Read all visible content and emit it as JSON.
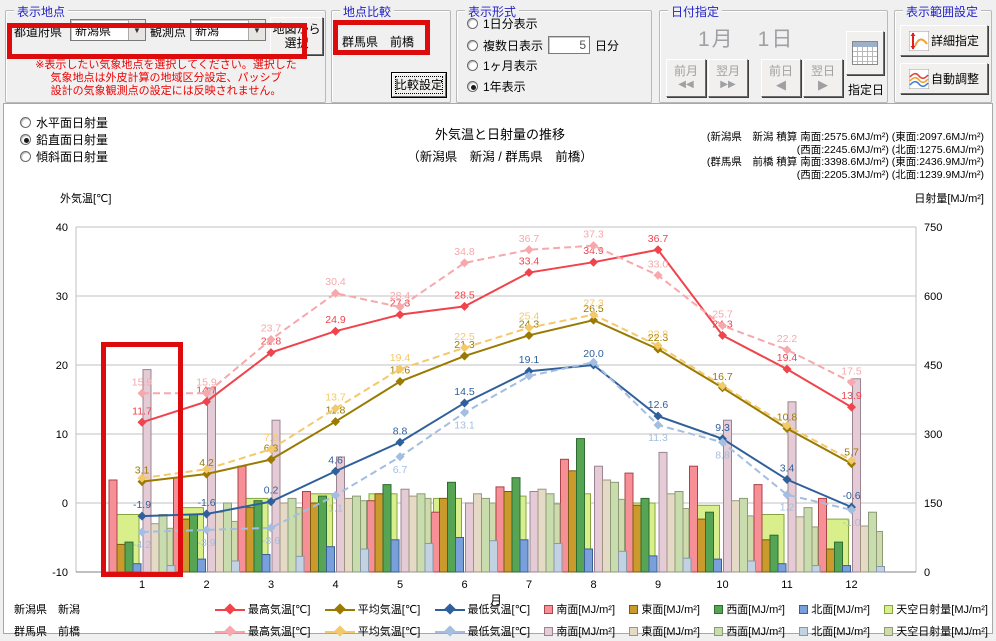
{
  "display_location": {
    "title": "表示地点",
    "prefecture_label": "都道府県",
    "prefecture_value": "新潟県",
    "station_label": "観測点",
    "station_value": "新潟",
    "map_button_line1": "地図から",
    "map_button_line2": "選択",
    "warning_lines": [
      "※表示したい気象地点を選択してください。選択した",
      "気象地点は外皮計算の地域区分設定、パッシブ",
      "設計の気象観測点の設定には反映されません。"
    ]
  },
  "location_compare": {
    "title": "地点比較",
    "value": "群馬県　前橋",
    "settings_button": "比較設定"
  },
  "display_format": {
    "title": "表示形式",
    "options": [
      {
        "label": "1日分表示",
        "selected": false
      },
      {
        "label": "複数日表示",
        "selected": false,
        "count_value": "5",
        "count_suffix": "日分"
      },
      {
        "label": "1ヶ月表示",
        "selected": false
      },
      {
        "label": "1年表示",
        "selected": true
      }
    ]
  },
  "date_select": {
    "title": "日付指定",
    "current_date": "1月　1日",
    "prev_month": "前月",
    "next_month": "翌月",
    "prev_day": "前日",
    "next_day": "翌日",
    "prev_month_glyph": "◀◀",
    "next_month_glyph": "▶▶",
    "prev_day_glyph": "◀",
    "next_day_glyph": "▶",
    "designated_day": "指定日"
  },
  "range_settings": {
    "title": "表示範囲設定",
    "detail_button": "詳細指定",
    "auto_button": "自動調整"
  },
  "radiation_type": {
    "options": [
      {
        "label": "水平面日射量",
        "selected": false
      },
      {
        "label": "鉛直面日射量",
        "selected": true
      },
      {
        "label": "傾斜面日射量",
        "selected": false
      }
    ]
  },
  "chart_header": {
    "title": "外気温と日射量の推移",
    "subtitle": "（新潟県　新潟 / 群馬県　前橋）",
    "totals_lines": [
      "(新潟県　新潟 積算 南面:2575.6MJ/m²) (東面:2097.6MJ/m²)",
      "(西面:2245.6MJ/m²) (北面:1275.6MJ/m²)",
      "(群馬県　前橋 積算 南面:3398.6MJ/m²) (東面:2436.9MJ/m²)",
      "(西面:2205.3MJ/m²) (北面:1239.9MJ/m²)"
    ],
    "left_axis_title": "外気温[℃]",
    "right_axis_title": "日射量[MJ/m²]"
  },
  "chart_data": {
    "type": "line+bar combo",
    "title": "外気温と日射量の推移",
    "subtitle": "（新潟県　新潟 / 群馬県　前橋）",
    "x_categories": [
      1,
      2,
      3,
      4,
      5,
      6,
      7,
      8,
      9,
      10,
      11,
      12
    ],
    "xlabel": "月",
    "left_axis": {
      "title": "外気温[℃]",
      "min": -10,
      "max": 40,
      "ticks": [
        40,
        30,
        20,
        10,
        0,
        -10
      ]
    },
    "right_axis": {
      "title": "日射量[MJ/m²]",
      "min": 0,
      "max": 750,
      "ticks": [
        750,
        600,
        450,
        300,
        150,
        0
      ]
    },
    "grid": true,
    "line_series": [
      {
        "name": "新潟県新潟 最高気温[℃]",
        "color": "#f0434b",
        "dash": false,
        "label_pos": "above",
        "values": [
          11.7,
          14.7,
          21.8,
          24.9,
          27.3,
          28.5,
          33.4,
          34.9,
          36.7,
          24.3,
          19.4,
          13.9
        ],
        "labels": [
          "11.7",
          "14.7",
          "21.8",
          "24.9",
          "27.3",
          "28.5",
          "33.4",
          "34.9",
          "36.7",
          "24.3",
          "19.4",
          "13.9"
        ]
      },
      {
        "name": "群馬県前橋 最高気温[℃]",
        "color": "#f6a8ac",
        "dash": true,
        "label_pos": "above",
        "values": [
          15.9,
          15.9,
          23.7,
          30.4,
          28.4,
          34.8,
          36.7,
          37.3,
          33.0,
          25.7,
          22.2,
          17.5
        ],
        "labels": [
          "15.9",
          "15.9",
          "23.7",
          "30.4",
          "28.4",
          "34.8",
          "36.7",
          "37.3",
          "33.0",
          "25.7",
          "22.2",
          "17.5"
        ]
      },
      {
        "name": "新潟県新潟 平均気温[℃]",
        "color": "#9a7a00",
        "dash": false,
        "label_pos": "above",
        "values": [
          3.1,
          4.2,
          6.3,
          11.8,
          17.6,
          21.3,
          24.3,
          26.5,
          22.3,
          16.7,
          10.8,
          5.7
        ],
        "labels": [
          "3.1",
          "4.2",
          "6.3",
          "11.8",
          "17.6",
          "21.3",
          "24.3",
          "26.5",
          "22.3",
          "16.7",
          "10.8",
          "5.7"
        ]
      },
      {
        "name": "群馬県前橋 平均気温[℃]",
        "color": "#f3c969",
        "dash": true,
        "label_pos": "above",
        "values": [
          3.6,
          4.9,
          7.8,
          13.7,
          19.4,
          22.5,
          25.4,
          27.3,
          22.8,
          17.0,
          11.2,
          6.2
        ],
        "labels": [
          "",
          "",
          "7.8",
          "13.7",
          "19.4",
          "22.5",
          "25.4",
          "27.3",
          "22.8",
          "",
          "",
          ""
        ]
      },
      {
        "name": "新潟県新潟 最低気温[℃]",
        "color": "#30609b",
        "dash": false,
        "label_pos": "above",
        "values": [
          -1.9,
          -1.6,
          0.2,
          4.6,
          8.8,
          14.5,
          19.1,
          20.0,
          12.6,
          9.3,
          3.4,
          -0.6
        ],
        "labels": [
          "-1.9",
          "-1.6",
          "0.2",
          "4.6",
          "8.8",
          "14.5",
          "19.1",
          "20.0",
          "12.6",
          "9.3",
          "3.4",
          "-0.6"
        ]
      },
      {
        "name": "群馬県前橋 最低気温[℃]",
        "color": "#a3bee0",
        "dash": true,
        "label_pos": "below",
        "values": [
          -4.2,
          -3.9,
          -3.6,
          1.1,
          6.7,
          13.1,
          18.4,
          20.4,
          11.3,
          8.8,
          1.2,
          -1.0
        ],
        "labels": [
          "-4.2",
          "-3.9",
          "-3.6",
          "1.1",
          "6.7",
          "13.1",
          "",
          "",
          "11.3",
          "8.8",
          "1.2",
          "-1.0"
        ]
      }
    ],
    "bar_series": [
      {
        "name": "新潟県新潟 天空日射量[MJ/m²]",
        "group": "a",
        "kind": "wide",
        "fill": "#d9ef8c",
        "stroke": "#86a53f",
        "values": [
          125,
          140,
          160,
          170,
          170,
          160,
          165,
          170,
          150,
          145,
          125,
          115
        ]
      },
      {
        "name": "新潟県新潟 南面[MJ/m²]",
        "group": "a",
        "kind": "narrow",
        "slot": 0,
        "fill": "#f78f96",
        "stroke": "#a94449",
        "values": [
          200,
          205,
          230,
          175,
          155,
          130,
          185,
          245,
          215,
          230,
          190,
          160
        ]
      },
      {
        "name": "新潟県新潟 東面[MJ/m²]",
        "group": "a",
        "kind": "narrow",
        "slot": 1,
        "fill": "#cb9a2d",
        "stroke": "#7a5c10",
        "values": [
          60,
          115,
          140,
          150,
          170,
          160,
          175,
          220,
          145,
          115,
          70,
          50
        ]
      },
      {
        "name": "新潟県新潟 西面[MJ/m²]",
        "group": "a",
        "kind": "narrow",
        "slot": 2,
        "fill": "#55a555",
        "stroke": "#2e6b2e",
        "values": [
          65,
          125,
          155,
          165,
          190,
          195,
          205,
          290,
          160,
          130,
          80,
          65
        ]
      },
      {
        "name": "新潟県新潟 北面[MJ/m²]",
        "group": "a",
        "kind": "narrow",
        "slot": 3,
        "fill": "#7aa0dc",
        "stroke": "#3a5f96",
        "values": [
          18,
          28,
          38,
          55,
          70,
          75,
          70,
          50,
          35,
          28,
          18,
          14
        ]
      },
      {
        "name": "群馬県前橋 天空日射量[MJ/m²]",
        "group": "b",
        "kind": "wide",
        "fill": "#cfdbac",
        "stroke": "#8f9b74",
        "values": [
          95,
          110,
          140,
          155,
          160,
          150,
          148,
          158,
          138,
          122,
          98,
          88
        ]
      },
      {
        "name": "群馬県前橋 南面[MJ/m²]",
        "group": "b",
        "kind": "narrow",
        "slot": 0,
        "fill": "#e5cbd6",
        "stroke": "#9b8490",
        "values": [
          440,
          400,
          330,
          250,
          180,
          150,
          175,
          230,
          260,
          330,
          370,
          420
        ]
      },
      {
        "name": "群馬県前橋 東面[MJ/m²]",
        "group": "b",
        "kind": "narrow",
        "slot": 1,
        "fill": "#e5dac6",
        "stroke": "#9e9480",
        "values": [
          105,
          130,
          150,
          160,
          165,
          170,
          180,
          200,
          170,
          155,
          120,
          100
        ]
      },
      {
        "name": "群馬県前橋 西面[MJ/m²]",
        "group": "b",
        "kind": "narrow",
        "slot": 2,
        "fill": "#c8dcae",
        "stroke": "#8a9b76",
        "values": [
          125,
          150,
          160,
          165,
          170,
          160,
          170,
          195,
          175,
          160,
          140,
          130
        ]
      },
      {
        "name": "群馬県前橋 北面[MJ/m²]",
        "group": "b",
        "kind": "narrow",
        "slot": 3,
        "fill": "#c2d2e2",
        "stroke": "#8798a8",
        "values": [
          14,
          24,
          34,
          50,
          62,
          68,
          62,
          45,
          30,
          24,
          14,
          12
        ]
      }
    ]
  },
  "legend": {
    "rows": [
      {
        "location": "新潟県　新潟",
        "items": [
          {
            "label": "最高気温[℃]",
            "swatch": "line",
            "color": "#f0434b"
          },
          {
            "label": "平均気温[℃]",
            "swatch": "line",
            "color": "#9a7a00"
          },
          {
            "label": "最低気温[℃]",
            "swatch": "line",
            "color": "#30609b"
          },
          {
            "label": "南面[MJ/m²]",
            "swatch": "box",
            "color": "#f78f96",
            "border": "#a94449"
          },
          {
            "label": "東面[MJ/m²]",
            "swatch": "box",
            "color": "#cb9a2d",
            "border": "#7a5c10"
          },
          {
            "label": "西面[MJ/m²]",
            "swatch": "box",
            "color": "#55a555",
            "border": "#2e6b2e"
          },
          {
            "label": "北面[MJ/m²]",
            "swatch": "box",
            "color": "#7aa0dc",
            "border": "#3a5f96"
          },
          {
            "label": "天空日射量[MJ/m²]",
            "swatch": "box",
            "color": "#d9ef8c",
            "border": "#86a53f"
          }
        ]
      },
      {
        "location": "群馬県　前橋",
        "items": [
          {
            "label": "最高気温[℃]",
            "swatch": "line",
            "color": "#f6a8ac"
          },
          {
            "label": "平均気温[℃]",
            "swatch": "line",
            "color": "#f3c969"
          },
          {
            "label": "最低気温[℃]",
            "swatch": "line",
            "color": "#a3bee0"
          },
          {
            "label": "南面[MJ/m²]",
            "swatch": "box",
            "color": "#e5cbd6",
            "border": "#9b8490"
          },
          {
            "label": "東面[MJ/m²]",
            "swatch": "box",
            "color": "#e5dac6",
            "border": "#9e9480"
          },
          {
            "label": "西面[MJ/m²]",
            "swatch": "box",
            "color": "#c8dcae",
            "border": "#8a9b76"
          },
          {
            "label": "北面[MJ/m²]",
            "swatch": "box",
            "color": "#c2d2e2",
            "border": "#8798a8"
          },
          {
            "label": "天空日射量[MJ/m²]",
            "swatch": "box",
            "color": "#cfdbac",
            "border": "#8f9b74"
          }
        ]
      }
    ]
  },
  "annotations": {
    "highlight_color": "#dd0b0b",
    "boxes": [
      "location-selector-highlight",
      "compare-location-highlight",
      "january-data-highlight"
    ]
  }
}
